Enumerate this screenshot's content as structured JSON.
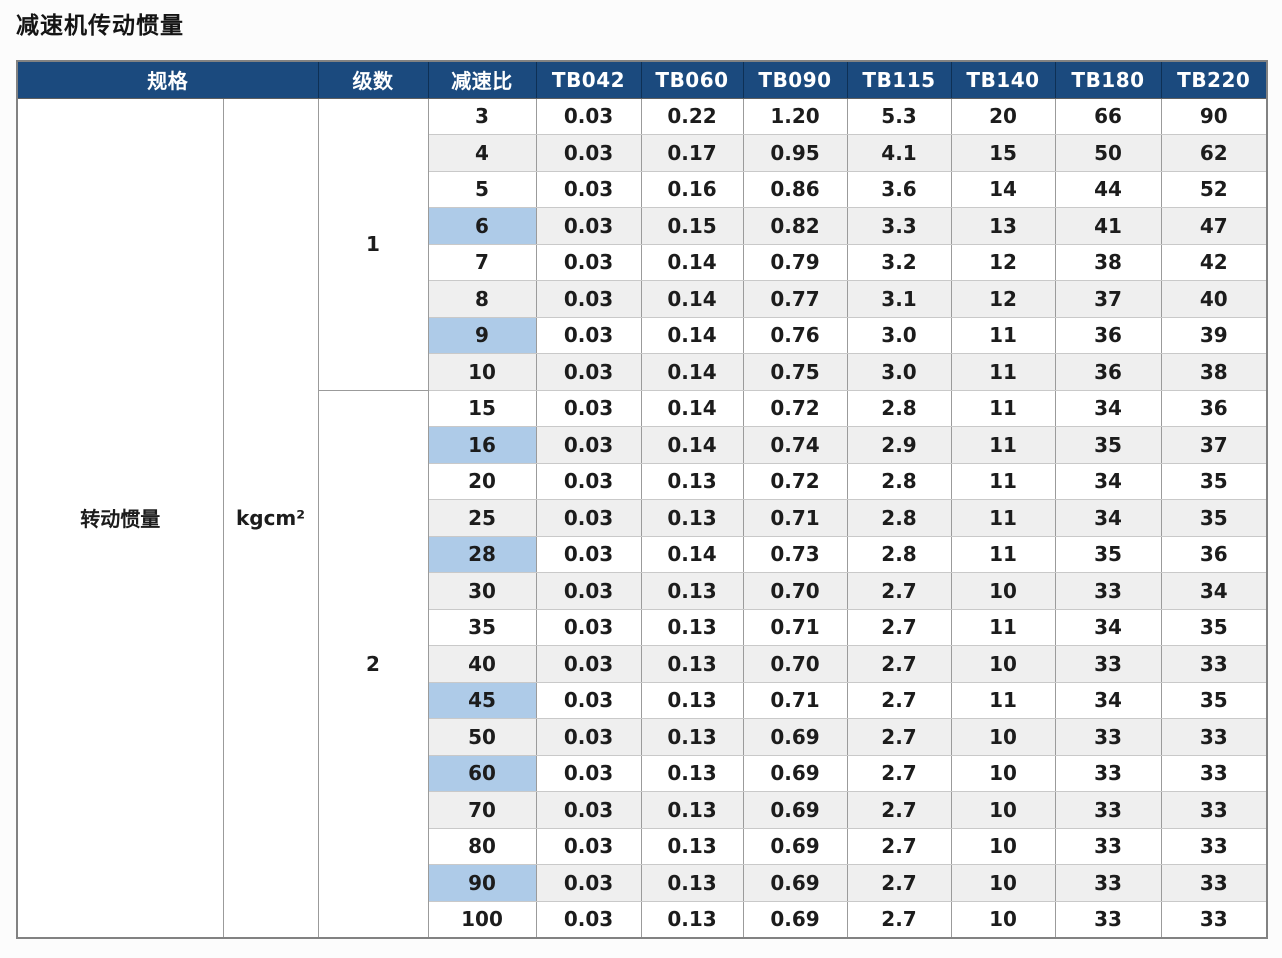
{
  "page": {
    "title": "减速机传动惯量"
  },
  "table": {
    "headers": {
      "spec": "规格",
      "stage": "级数",
      "ratio": "减速比",
      "models": [
        "TB042",
        "TB060",
        "TB090",
        "TB115",
        "TB140",
        "TB180",
        "TB220"
      ]
    },
    "row_label": "转动惯量",
    "unit": "kgcm²",
    "colors": {
      "header_bg": "#1b4a7e",
      "highlight_bg": "#aecbe8",
      "stripe_bg": "#efefef"
    },
    "groups": [
      {
        "stage": "1",
        "rows": [
          {
            "ratio": "3",
            "highlight": false,
            "values": [
              "0.03",
              "0.22",
              "1.20",
              "5.3",
              "20",
              "66",
              "90"
            ]
          },
          {
            "ratio": "4",
            "highlight": false,
            "values": [
              "0.03",
              "0.17",
              "0.95",
              "4.1",
              "15",
              "50",
              "62"
            ]
          },
          {
            "ratio": "5",
            "highlight": false,
            "values": [
              "0.03",
              "0.16",
              "0.86",
              "3.6",
              "14",
              "44",
              "52"
            ]
          },
          {
            "ratio": "6",
            "highlight": true,
            "values": [
              "0.03",
              "0.15",
              "0.82",
              "3.3",
              "13",
              "41",
              "47"
            ]
          },
          {
            "ratio": "7",
            "highlight": false,
            "values": [
              "0.03",
              "0.14",
              "0.79",
              "3.2",
              "12",
              "38",
              "42"
            ]
          },
          {
            "ratio": "8",
            "highlight": false,
            "values": [
              "0.03",
              "0.14",
              "0.77",
              "3.1",
              "12",
              "37",
              "40"
            ]
          },
          {
            "ratio": "9",
            "highlight": true,
            "values": [
              "0.03",
              "0.14",
              "0.76",
              "3.0",
              "11",
              "36",
              "39"
            ]
          },
          {
            "ratio": "10",
            "highlight": false,
            "values": [
              "0.03",
              "0.14",
              "0.75",
              "3.0",
              "11",
              "36",
              "38"
            ]
          }
        ]
      },
      {
        "stage": "2",
        "rows": [
          {
            "ratio": "15",
            "highlight": false,
            "values": [
              "0.03",
              "0.14",
              "0.72",
              "2.8",
              "11",
              "34",
              "36"
            ]
          },
          {
            "ratio": "16",
            "highlight": true,
            "values": [
              "0.03",
              "0.14",
              "0.74",
              "2.9",
              "11",
              "35",
              "37"
            ]
          },
          {
            "ratio": "20",
            "highlight": false,
            "values": [
              "0.03",
              "0.13",
              "0.72",
              "2.8",
              "11",
              "34",
              "35"
            ]
          },
          {
            "ratio": "25",
            "highlight": false,
            "values": [
              "0.03",
              "0.13",
              "0.71",
              "2.8",
              "11",
              "34",
              "35"
            ]
          },
          {
            "ratio": "28",
            "highlight": true,
            "values": [
              "0.03",
              "0.14",
              "0.73",
              "2.8",
              "11",
              "35",
              "36"
            ]
          },
          {
            "ratio": "30",
            "highlight": false,
            "values": [
              "0.03",
              "0.13",
              "0.70",
              "2.7",
              "10",
              "33",
              "34"
            ]
          },
          {
            "ratio": "35",
            "highlight": false,
            "values": [
              "0.03",
              "0.13",
              "0.71",
              "2.7",
              "11",
              "34",
              "35"
            ]
          },
          {
            "ratio": "40",
            "highlight": false,
            "values": [
              "0.03",
              "0.13",
              "0.70",
              "2.7",
              "10",
              "33",
              "33"
            ]
          },
          {
            "ratio": "45",
            "highlight": true,
            "values": [
              "0.03",
              "0.13",
              "0.71",
              "2.7",
              "11",
              "34",
              "35"
            ]
          },
          {
            "ratio": "50",
            "highlight": false,
            "values": [
              "0.03",
              "0.13",
              "0.69",
              "2.7",
              "10",
              "33",
              "33"
            ]
          },
          {
            "ratio": "60",
            "highlight": true,
            "values": [
              "0.03",
              "0.13",
              "0.69",
              "2.7",
              "10",
              "33",
              "33"
            ]
          },
          {
            "ratio": "70",
            "highlight": false,
            "values": [
              "0.03",
              "0.13",
              "0.69",
              "2.7",
              "10",
              "33",
              "33"
            ]
          },
          {
            "ratio": "80",
            "highlight": false,
            "values": [
              "0.03",
              "0.13",
              "0.69",
              "2.7",
              "10",
              "33",
              "33"
            ]
          },
          {
            "ratio": "90",
            "highlight": true,
            "values": [
              "0.03",
              "0.13",
              "0.69",
              "2.7",
              "10",
              "33",
              "33"
            ]
          },
          {
            "ratio": "100",
            "highlight": false,
            "values": [
              "0.03",
              "0.13",
              "0.69",
              "2.7",
              "10",
              "33",
              "33"
            ]
          }
        ]
      }
    ]
  }
}
